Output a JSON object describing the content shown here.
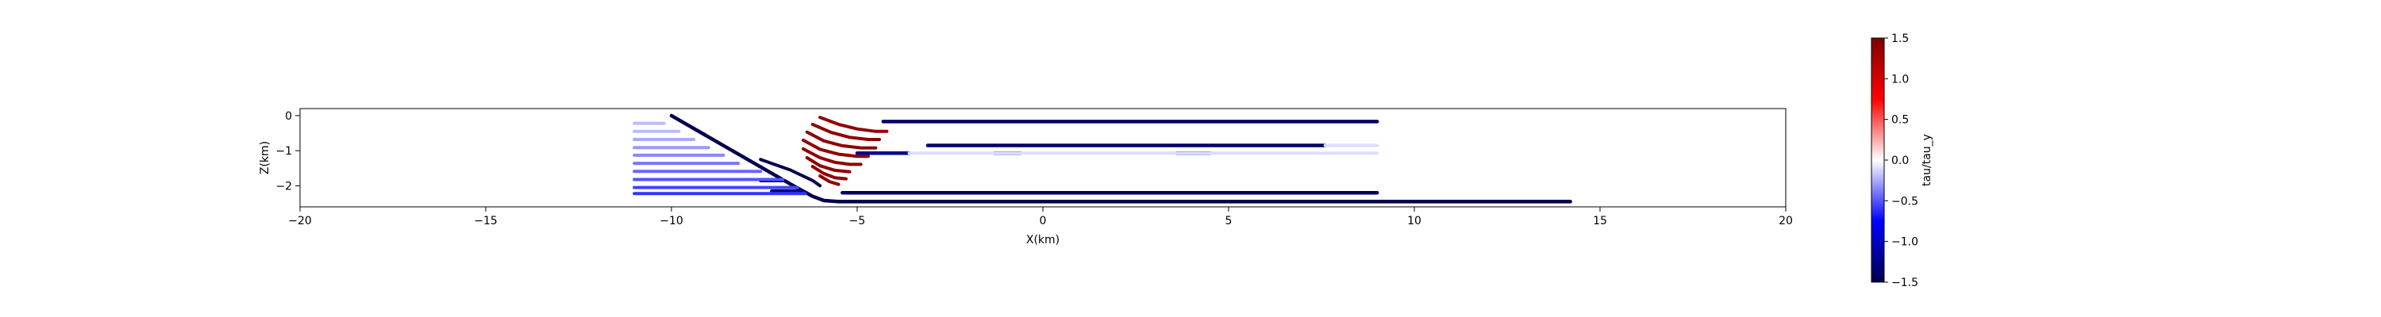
{
  "chart_data": {
    "type": "line",
    "title": "",
    "xlabel": "X(km)",
    "ylabel": "Z(km)",
    "xlim": [
      -20,
      20
    ],
    "ylim": [
      -2.6,
      0.2
    ],
    "xticks": [
      "−20",
      "−15",
      "−10",
      "−5",
      "0",
      "5",
      "10",
      "15",
      "20"
    ],
    "yticks": [
      "0",
      "−1",
      "−2"
    ],
    "grid": false,
    "colorbar": {
      "label": "tau/tau_y",
      "range": [
        -1.5,
        1.5
      ],
      "ticks": [
        "1.5",
        "1.0",
        "0.5",
        "0.0",
        "−0.5",
        "−1.0",
        "−1.5"
      ],
      "colormap": "seismic",
      "colors": [
        "#00004c",
        "#0000ff",
        "#ffffff",
        "#ff0000",
        "#7f0000"
      ]
    },
    "series": [
      {
        "role": "main-fault",
        "v": -1.5,
        "x": [
          -10.0,
          -6.8,
          -6.2,
          -5.9,
          -5.5,
          14.2
        ],
        "y": [
          0.0,
          -1.95,
          -2.3,
          -2.42,
          -2.45,
          -2.45
        ]
      },
      {
        "role": "splay-upper",
        "v": -1.5,
        "x": [
          -7.6,
          -6.8,
          -6.2,
          -6.0
        ],
        "y": [
          -1.25,
          -1.55,
          -1.85,
          -2.0
        ]
      },
      {
        "role": "branch",
        "v": -1.3,
        "x": [
          -7.0,
          -7.6
        ],
        "y": [
          -1.85,
          -1.85
        ]
      },
      {
        "role": "branch",
        "v": -1.3,
        "x": [
          -6.5,
          -7.3
        ],
        "y": [
          -2.15,
          -2.15
        ]
      },
      {
        "role": "branch",
        "v": -1.4,
        "x": [
          -4.3,
          9.0
        ],
        "y": [
          -0.17,
          -0.17
        ]
      },
      {
        "role": "branch",
        "v": -1.4,
        "x": [
          -3.1,
          7.6
        ],
        "y": [
          -0.85,
          -0.85
        ]
      },
      {
        "role": "branch",
        "v": -1.2,
        "x": [
          -5.0,
          -3.6
        ],
        "y": [
          -1.07,
          -1.07
        ]
      },
      {
        "role": "branch",
        "v": -1.2,
        "x": [
          -1.3,
          -0.6
        ],
        "y": [
          -1.07,
          -1.07
        ]
      },
      {
        "role": "branch",
        "v": -1.2,
        "x": [
          3.6,
          4.5
        ],
        "y": [
          -1.07,
          -1.07
        ]
      },
      {
        "role": "branch",
        "v": -1.4,
        "x": [
          -5.4,
          9.0
        ],
        "y": [
          -2.2,
          -2.2
        ]
      },
      {
        "role": "faint",
        "v": -0.2,
        "x": [
          -11.0,
          -10.2
        ],
        "y": [
          -0.22,
          -0.22
        ]
      },
      {
        "role": "faint",
        "v": -0.2,
        "x": [
          -11.0,
          -9.8
        ],
        "y": [
          -0.45,
          -0.45
        ]
      },
      {
        "role": "faint",
        "v": -0.25,
        "x": [
          -11.0,
          -9.4
        ],
        "y": [
          -0.68,
          -0.68
        ]
      },
      {
        "role": "faint",
        "v": -0.3,
        "x": [
          -11.0,
          -9.0
        ],
        "y": [
          -0.91,
          -0.91
        ]
      },
      {
        "role": "faint",
        "v": -0.35,
        "x": [
          -11.0,
          -8.6
        ],
        "y": [
          -1.13,
          -1.13
        ]
      },
      {
        "role": "faint",
        "v": -0.4,
        "x": [
          -11.0,
          -8.2
        ],
        "y": [
          -1.36,
          -1.36
        ]
      },
      {
        "role": "faint",
        "v": -0.45,
        "x": [
          -11.0,
          -7.6
        ],
        "y": [
          -1.59,
          -1.59
        ]
      },
      {
        "role": "faint",
        "v": -0.5,
        "x": [
          -11.0,
          -7.0
        ],
        "y": [
          -1.82,
          -1.82
        ]
      },
      {
        "role": "faint",
        "v": -0.55,
        "x": [
          -11.0,
          -6.6
        ],
        "y": [
          -2.05,
          -2.05
        ]
      },
      {
        "role": "faint",
        "v": -0.6,
        "x": [
          -11.0,
          -6.4
        ],
        "y": [
          -2.22,
          -2.22
        ]
      },
      {
        "role": "faint",
        "v": -0.1,
        "x": [
          7.6,
          9.0
        ],
        "y": [
          -0.85,
          -0.85
        ]
      },
      {
        "role": "faint",
        "v": -0.1,
        "x": [
          -3.6,
          9.0
        ],
        "y": [
          -1.07,
          -1.07
        ]
      },
      {
        "role": "arc",
        "v": 1.4,
        "x": [
          -6.0,
          -5.5,
          -5.0,
          -4.5,
          -4.2
        ],
        "y": [
          -0.05,
          -0.25,
          -0.38,
          -0.45,
          -0.45
        ]
      },
      {
        "role": "arc",
        "v": 1.4,
        "x": [
          -6.2,
          -5.7,
          -5.2,
          -4.7,
          -4.4
        ],
        "y": [
          -0.25,
          -0.48,
          -0.62,
          -0.68,
          -0.68
        ]
      },
      {
        "role": "arc",
        "v": 1.4,
        "x": [
          -6.35,
          -5.9,
          -5.4,
          -4.9,
          -4.5
        ],
        "y": [
          -0.47,
          -0.72,
          -0.86,
          -0.92,
          -0.92
        ]
      },
      {
        "role": "arc",
        "v": 1.4,
        "x": [
          -6.45,
          -6.0,
          -5.5,
          -5.0,
          -4.7
        ],
        "y": [
          -0.7,
          -0.96,
          -1.1,
          -1.16,
          -1.16
        ]
      },
      {
        "role": "arc",
        "v": 1.4,
        "x": [
          -6.45,
          -6.0,
          -5.6,
          -5.2,
          -4.9
        ],
        "y": [
          -0.95,
          -1.2,
          -1.33,
          -1.39,
          -1.39
        ]
      },
      {
        "role": "arc",
        "v": 1.4,
        "x": [
          -6.35,
          -6.0,
          -5.6,
          -5.2
        ],
        "y": [
          -1.2,
          -1.43,
          -1.56,
          -1.6
        ]
      },
      {
        "role": "arc",
        "v": 1.4,
        "x": [
          -6.2,
          -5.9,
          -5.6,
          -5.3
        ],
        "y": [
          -1.45,
          -1.65,
          -1.77,
          -1.8
        ]
      },
      {
        "role": "arc",
        "v": 1.4,
        "x": [
          -6.0,
          -5.75,
          -5.5
        ],
        "y": [
          -1.72,
          -1.88,
          -1.96
        ]
      }
    ]
  }
}
